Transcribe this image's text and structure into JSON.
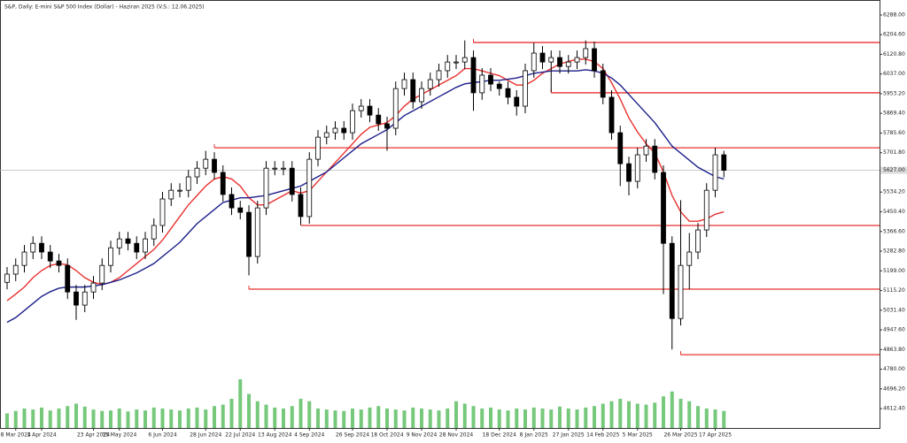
{
  "chart_data": {
    "type": "candlestick",
    "title": "S&P, Daily: E-mini S&P 500 Index (Dollar) - Haziran 2025 (V.S.: 12.06.2025)",
    "open": [
      5150,
      5185,
      5222,
      5279,
      5316,
      5279,
      5241,
      5222,
      5109,
      5053,
      5109,
      5147,
      5222,
      5297,
      5335,
      5316,
      5279,
      5335,
      5392,
      5505,
      5542,
      5542,
      5599,
      5636,
      5674,
      5618,
      5524,
      5467,
      5448,
      5260,
      5467,
      5636,
      5636,
      5636,
      5524,
      5430,
      5674,
      5768,
      5787,
      5806,
      5787,
      5881,
      5900,
      5862,
      5825,
      5806,
      5975,
      6013,
      5919,
      5975,
      6013,
      6051,
      6088,
      6088,
      6107,
      5957,
      6032,
      5994,
      5975,
      5938,
      5900,
      6051,
      6126,
      6088,
      6107,
      6069,
      6088,
      6107,
      6145,
      6051,
      5938,
      5787,
      5655,
      5580,
      5693,
      5730,
      5618,
      5316,
      4996,
      5222,
      5279,
      5373,
      5542,
      5693
    ],
    "high": [
      5215,
      5252,
      5309,
      5346,
      5346,
      5309,
      5271,
      5252,
      5139,
      5139,
      5177,
      5252,
      5327,
      5365,
      5365,
      5346,
      5365,
      5422,
      5535,
      5572,
      5572,
      5629,
      5666,
      5710,
      5704,
      5648,
      5554,
      5497,
      5478,
      5497,
      5666,
      5666,
      5666,
      5666,
      5554,
      5704,
      5798,
      5817,
      5836,
      5836,
      5911,
      5930,
      5930,
      5892,
      5855,
      6005,
      6043,
      6043,
      6005,
      6043,
      6081,
      6118,
      6118,
      6180,
      6137,
      6062,
      6062,
      6005,
      6005,
      5968,
      6081,
      6170,
      6156,
      6137,
      6137,
      6118,
      6137,
      6180,
      6175,
      6081,
      5968,
      5817,
      5685,
      5723,
      5760,
      5760,
      5648,
      5346,
      5500,
      5360,
      5403,
      5572,
      5723,
      5710
    ],
    "low": [
      5120,
      5155,
      5192,
      5249,
      5249,
      5211,
      5192,
      5079,
      4990,
      5023,
      5079,
      5117,
      5192,
      5267,
      5286,
      5249,
      5249,
      5305,
      5362,
      5475,
      5512,
      5512,
      5569,
      5606,
      5588,
      5494,
      5437,
      5418,
      5180,
      5230,
      5437,
      5606,
      5606,
      5494,
      5395,
      5400,
      5644,
      5738,
      5757,
      5757,
      5757,
      5851,
      5832,
      5795,
      5710,
      5776,
      5945,
      5889,
      5889,
      5945,
      5983,
      6021,
      6058,
      6058,
      5880,
      5927,
      5964,
      5945,
      5908,
      5860,
      5870,
      6021,
      6058,
      5960,
      6039,
      6039,
      6058,
      6077,
      6021,
      5908,
      5757,
      5560,
      5520,
      5550,
      5663,
      5588,
      5100,
      4864,
      4966,
      5120,
      5249,
      5343,
      5512,
      5597
    ],
    "close": [
      5185,
      5222,
      5279,
      5316,
      5279,
      5241,
      5222,
      5109,
      5053,
      5109,
      5147,
      5222,
      5297,
      5335,
      5316,
      5279,
      5335,
      5392,
      5505,
      5542,
      5542,
      5599,
      5636,
      5674,
      5618,
      5524,
      5467,
      5448,
      5260,
      5467,
      5636,
      5636,
      5636,
      5524,
      5430,
      5674,
      5768,
      5787,
      5806,
      5787,
      5881,
      5900,
      5862,
      5825,
      5806,
      5975,
      6013,
      5919,
      5975,
      6013,
      6051,
      6088,
      6088,
      6107,
      5957,
      6032,
      5994,
      5975,
      5938,
      5900,
      6051,
      6126,
      6088,
      6107,
      6069,
      6088,
      6107,
      6145,
      6051,
      5938,
      5787,
      5655,
      5580,
      5693,
      5730,
      5618,
      5316,
      4996,
      5222,
      5279,
      5373,
      5542,
      5693,
      5627
    ],
    "series": [
      {
        "color": "#e8312f",
        "values": [
          5072,
          5100,
          5130,
          5170,
          5200,
          5222,
          5230,
          5225,
          5200,
          5170,
          5150,
          5140,
          5150,
          5170,
          5200,
          5230,
          5260,
          5290,
          5330,
          5380,
          5430,
          5480,
          5520,
          5560,
          5590,
          5600,
          5590,
          5560,
          5510,
          5480,
          5480,
          5500,
          5520,
          5540,
          5530,
          5540,
          5580,
          5620,
          5660,
          5700,
          5740,
          5780,
          5810,
          5820,
          5830,
          5860,
          5900,
          5930,
          5950,
          5970,
          5990,
          6010,
          6030,
          6060,
          6060,
          6050,
          6040,
          6030,
          6010,
          5990,
          5990,
          6010,
          6040,
          6060,
          6080,
          6090,
          6100,
          6100,
          6090,
          6060,
          6000,
          5930,
          5850,
          5790,
          5740,
          5700,
          5620,
          5520,
          5450,
          5410,
          5410,
          5420,
          5440,
          5450
        ]
      },
      {
        "color": "#1c1f8a",
        "values": [
          4980,
          5000,
          5030,
          5060,
          5090,
          5110,
          5125,
          5130,
          5130,
          5130,
          5135,
          5140,
          5150,
          5160,
          5175,
          5190,
          5210,
          5230,
          5260,
          5290,
          5320,
          5360,
          5400,
          5430,
          5460,
          5490,
          5500,
          5510,
          5510,
          5515,
          5520,
          5530,
          5540,
          5550,
          5560,
          5580,
          5600,
          5620,
          5650,
          5680,
          5710,
          5740,
          5760,
          5780,
          5800,
          5830,
          5860,
          5880,
          5900,
          5920,
          5940,
          5960,
          5980,
          5995,
          6000,
          6005,
          6010,
          6010,
          6015,
          6020,
          6030,
          6040,
          6045,
          6050,
          6050,
          6050,
          6050,
          6055,
          6050,
          6040,
          6020,
          5990,
          5950,
          5910,
          5870,
          5830,
          5780,
          5730,
          5700,
          5670,
          5640,
          5620,
          5600,
          5590
        ]
      }
    ],
    "volume": [
      30,
      35,
      40,
      38,
      42,
      36,
      40,
      45,
      50,
      44,
      38,
      35,
      36,
      40,
      34,
      38,
      36,
      42,
      40,
      38,
      36,
      40,
      42,
      38,
      45,
      48,
      60,
      100,
      70,
      55,
      48,
      42,
      40,
      45,
      60,
      55,
      40,
      38,
      36,
      35,
      40,
      38,
      42,
      45,
      40,
      38,
      36,
      42,
      40,
      38,
      36,
      40,
      55,
      50,
      45,
      40,
      42,
      38,
      36,
      40,
      38,
      42,
      40,
      38,
      44,
      40,
      38,
      42,
      45,
      50,
      55,
      60,
      55,
      50,
      48,
      52,
      65,
      75,
      60,
      55,
      45,
      40,
      38,
      35
    ],
    "volume_color": "#3cb043",
    "levels": [
      {
        "value": 6171,
        "start": 54
      },
      {
        "value": 5957,
        "start": 63
      },
      {
        "value": 5723,
        "start": 24
      },
      {
        "value": 5392,
        "start": 34
      },
      {
        "value": 5121,
        "start": 28
      },
      {
        "value": 4842,
        "start": 78
      }
    ],
    "level_color": "#e8312f",
    "last_price": {
      "value": 5627,
      "label": "5627.00"
    },
    "ylim": [
      4530,
      6352
    ],
    "yticks": [
      {
        "value": 6288,
        "label": "6288.00"
      },
      {
        "value": 6204.6,
        "label": "6204.60"
      },
      {
        "value": 6120.8,
        "label": "6120.80"
      },
      {
        "value": 6037,
        "label": "6037.00"
      },
      {
        "value": 5953.2,
        "label": "5953.20"
      },
      {
        "value": 5869.4,
        "label": "5869.40"
      },
      {
        "value": 5785.6,
        "label": "5785.60"
      },
      {
        "value": 5701.8,
        "label": "5701.80"
      },
      {
        "value": 5534.2,
        "label": "5534.20"
      },
      {
        "value": 5450.4,
        "label": "5450.40"
      },
      {
        "value": 5366.6,
        "label": "5366.60"
      },
      {
        "value": 5282.8,
        "label": "5282.80"
      },
      {
        "value": 5199,
        "label": "5199.00"
      },
      {
        "value": 5115.2,
        "label": "5115.20"
      },
      {
        "value": 5031.4,
        "label": "5031.40"
      },
      {
        "value": 4947.6,
        "label": "4947.60"
      },
      {
        "value": 4863.8,
        "label": "4863.80"
      },
      {
        "value": 4780,
        "label": "4780.00"
      },
      {
        "value": 4696.2,
        "label": "4696.20"
      },
      {
        "value": 4612.4,
        "label": "4612.40"
      }
    ],
    "xticks": [
      {
        "value": 1,
        "label": "8 Mar 2024"
      },
      {
        "value": 4,
        "label": "1 Apr 2024"
      },
      {
        "value": 10,
        "label": "23 Apr 2024"
      },
      {
        "value": 13,
        "label": "15 May 2024"
      },
      {
        "value": 18,
        "label": "6 Jun 2024"
      },
      {
        "value": 23,
        "label": "28 Jun 2024"
      },
      {
        "value": 27,
        "label": "22 Jul 2024"
      },
      {
        "value": 31,
        "label": "13 Aug 2024"
      },
      {
        "value": 35,
        "label": "4 Sep 2024"
      },
      {
        "value": 40,
        "label": "26 Sep 2024"
      },
      {
        "value": 44,
        "label": "18 Oct 2024"
      },
      {
        "value": 48,
        "label": "9 Nov 2024"
      },
      {
        "value": 52,
        "label": "28 Nov 2024"
      },
      {
        "value": 57,
        "label": "18 Dec 2024"
      },
      {
        "value": 61,
        "label": "8 Jan 2025"
      },
      {
        "value": 65,
        "label": "27 Jan 2025"
      },
      {
        "value": 69,
        "label": "14 Feb 2025"
      },
      {
        "value": 73,
        "label": "5 Mar 2025"
      },
      {
        "value": 78,
        "label": "26 Mar 2025"
      },
      {
        "value": 82,
        "label": "17 Apr 2025"
      }
    ]
  }
}
